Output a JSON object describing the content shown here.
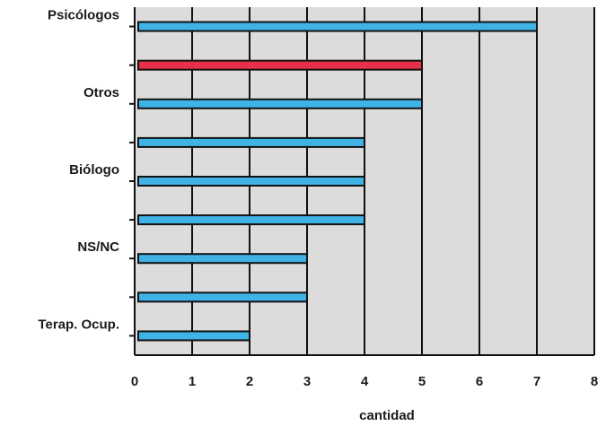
{
  "chart_data": {
    "type": "bar",
    "orientation": "horizontal",
    "categories": [
      "Psicólogos",
      "",
      "Otros",
      "",
      "Biólogo",
      "",
      "NS/NC",
      "",
      "Terap. Ocup."
    ],
    "values": [
      7,
      5,
      5,
      4,
      4,
      4,
      3,
      3,
      2
    ],
    "bar_colors": [
      "#3fb3e6",
      "#e8304a",
      "#3fb3e6",
      "#3fb3e6",
      "#3fb3e6",
      "#3fb3e6",
      "#3fb3e6",
      "#3fb3e6",
      "#3fb3e6"
    ],
    "xlabel": "cantidad",
    "ylabel": "",
    "title": "",
    "xlim": [
      0,
      8
    ],
    "xticks": [
      "0",
      "1",
      "2",
      "3",
      "4",
      "5",
      "6",
      "7",
      "8"
    ],
    "grid": true,
    "plot_background": "#dcdcdc"
  }
}
